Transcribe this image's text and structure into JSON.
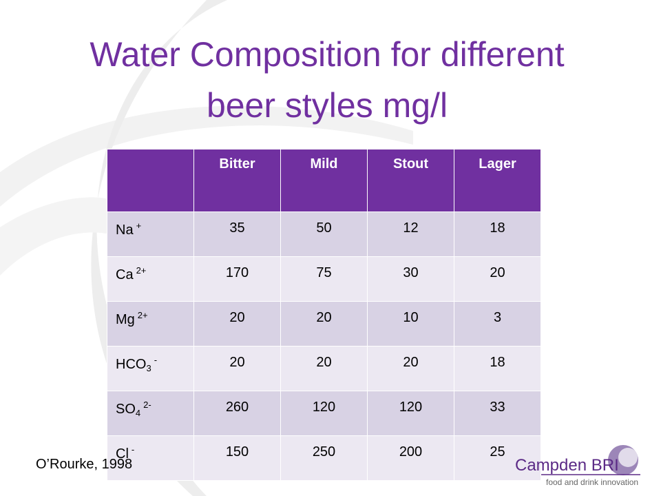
{
  "title": "Water Composition for different beer styles mg/l",
  "table": {
    "columns": [
      "Bitter",
      "Mild",
      "Stout",
      "Lager"
    ],
    "rows": [
      {
        "ion": "Na",
        "charge": "+",
        "values": [
          35,
          50,
          12,
          18
        ]
      },
      {
        "ion": "Ca",
        "charge": "2+",
        "values": [
          170,
          75,
          30,
          20
        ]
      },
      {
        "ion": "Mg",
        "charge": "2+",
        "values": [
          20,
          20,
          10,
          3
        ]
      },
      {
        "ion": "HCO",
        "sub": "3",
        "charge": "-",
        "values": [
          20,
          20,
          20,
          18
        ]
      },
      {
        "ion": "SO",
        "sub": "4",
        "charge": "2-",
        "values": [
          260,
          120,
          120,
          33
        ]
      },
      {
        "ion": "Cl",
        "charge": "-",
        "values": [
          150,
          250,
          200,
          25
        ]
      }
    ]
  },
  "source": "O’Rourke, 1998",
  "logo": {
    "name": "Campden BRI",
    "tagline": "food and drink innovation"
  }
}
